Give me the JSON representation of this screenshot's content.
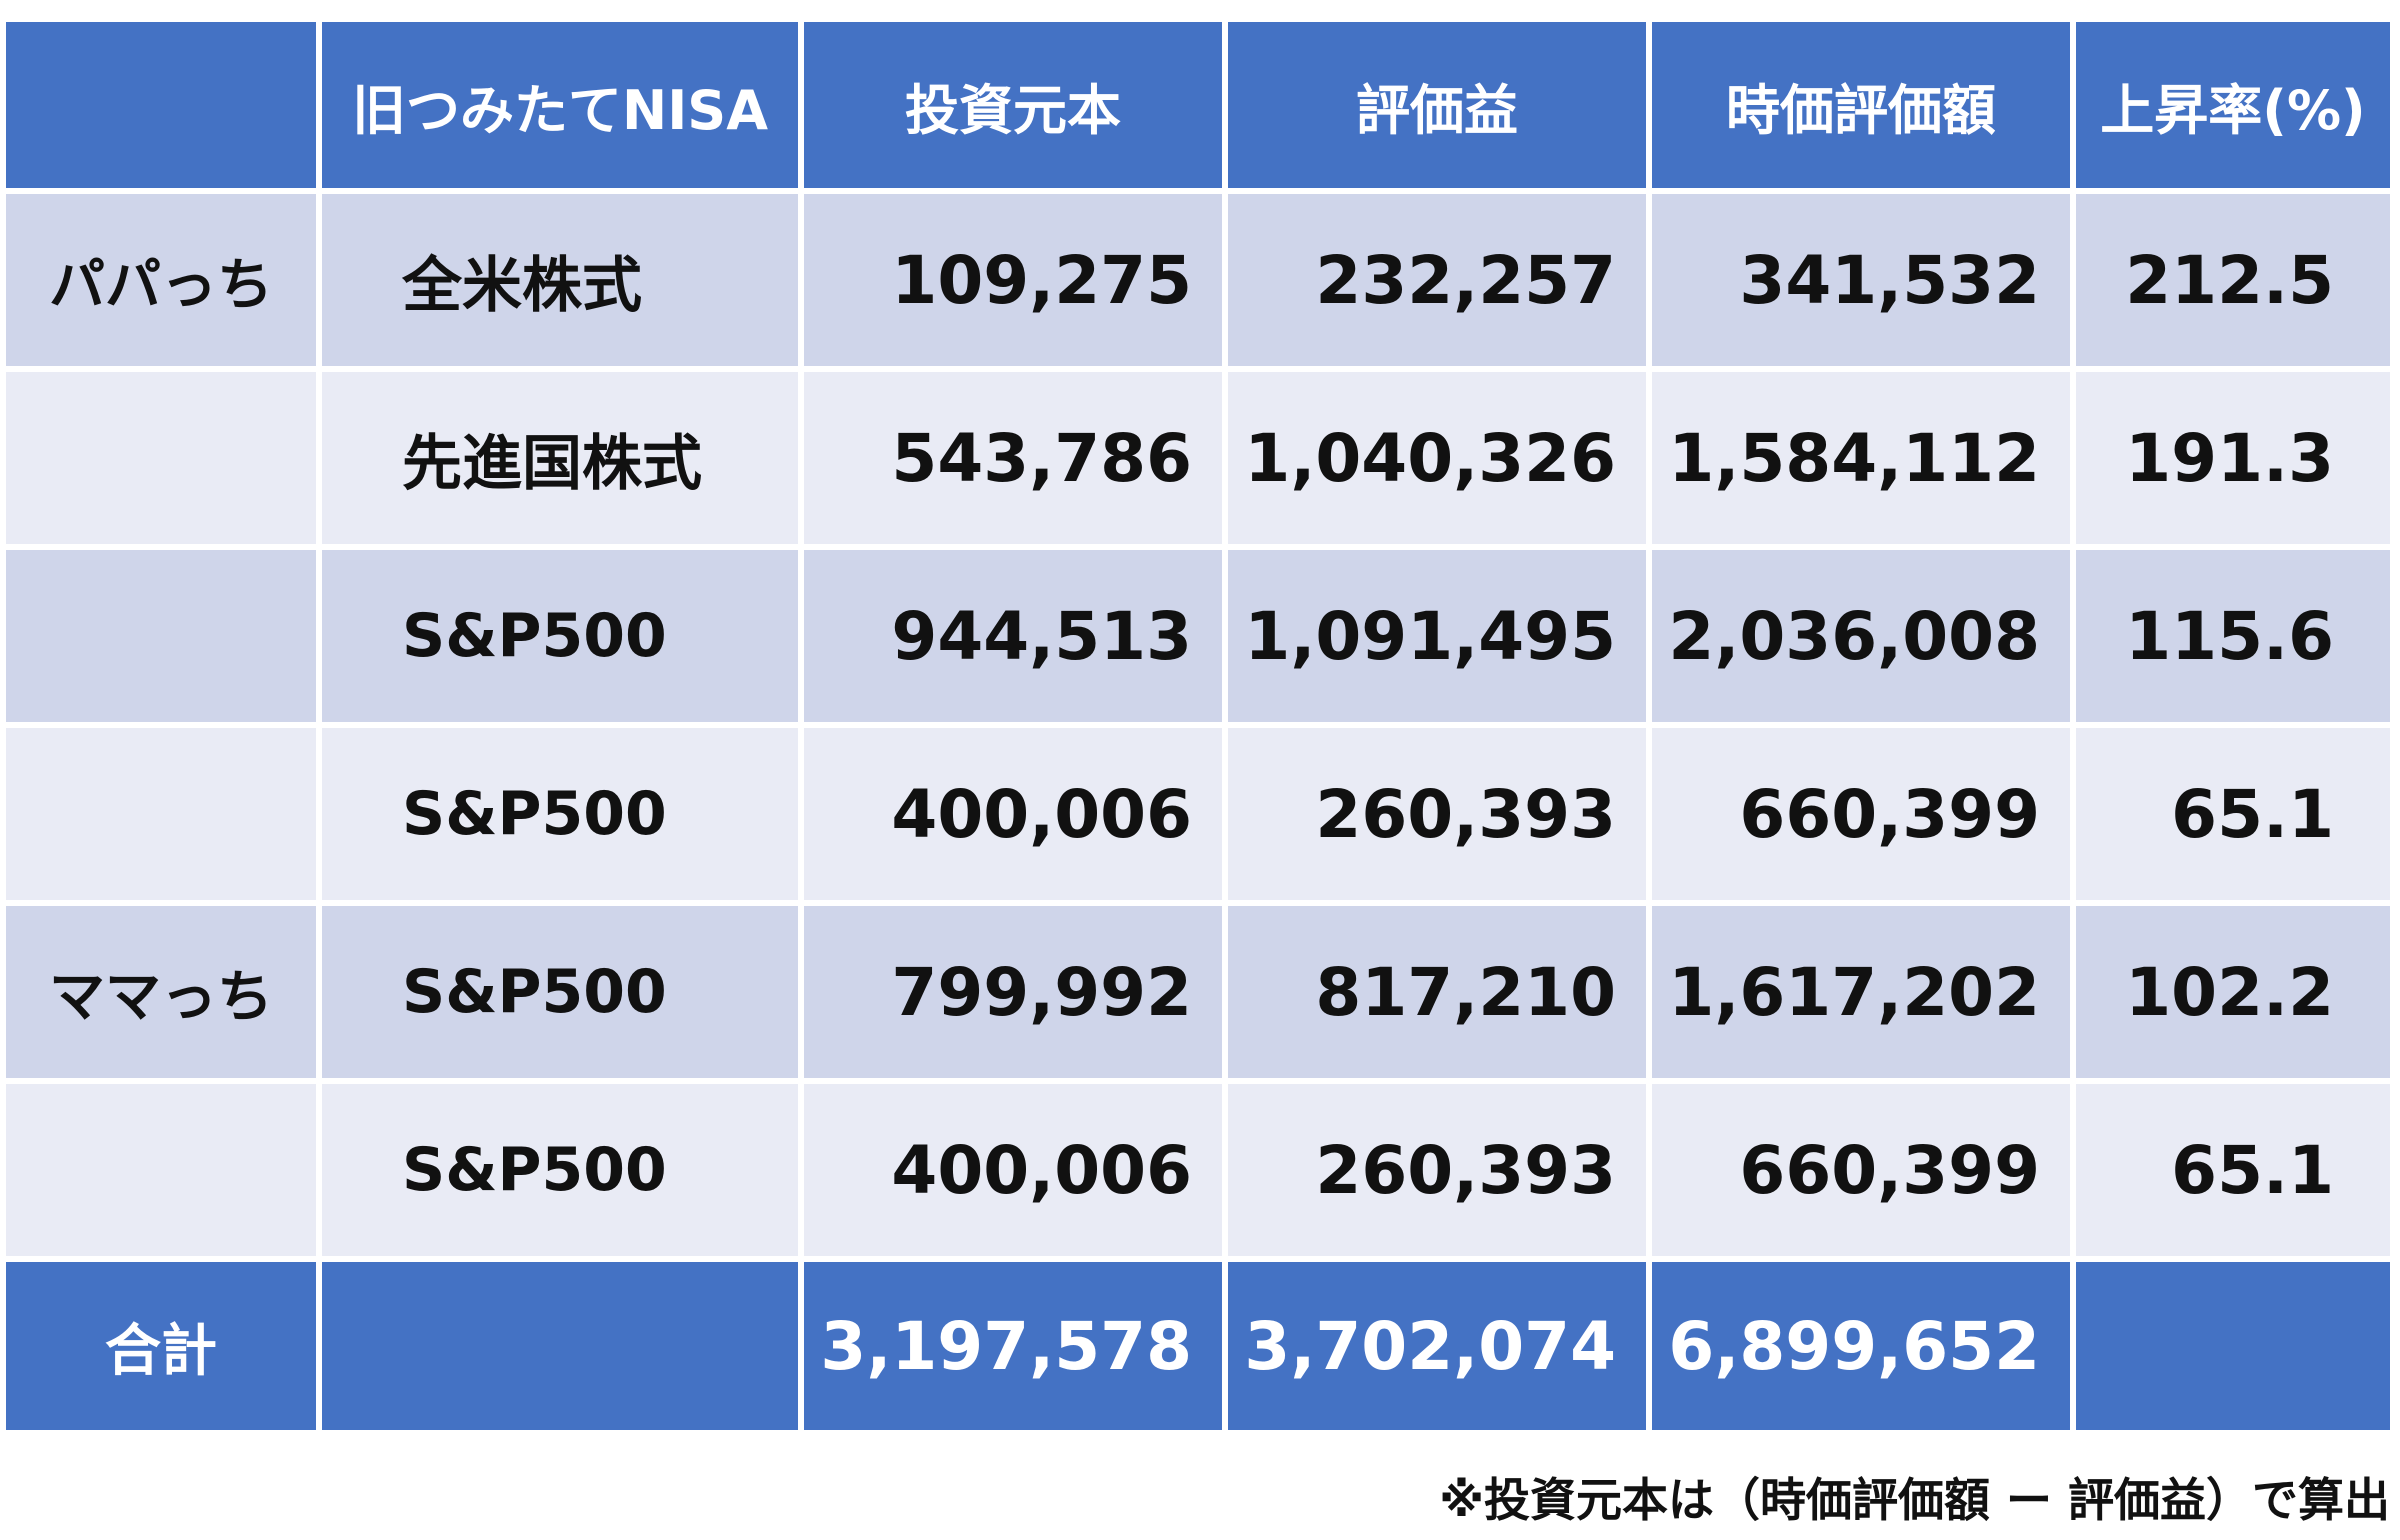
{
  "table": {
    "headers": [
      "",
      "旧つみたてNISA",
      "投資元本",
      "評価益",
      "時価評価額",
      "上昇率(%)"
    ],
    "rows": [
      {
        "owner": "パパっち",
        "fund": "全米株式",
        "principal": "109,275",
        "gain": "232,257",
        "market_value": "341,532",
        "rate": "212.5"
      },
      {
        "owner": "",
        "fund": "先進国株式",
        "principal": "543,786",
        "gain": "1,040,326",
        "market_value": "1,584,112",
        "rate": "191.3"
      },
      {
        "owner": "",
        "fund": "S&P500",
        "principal": "944,513",
        "gain": "1,091,495",
        "market_value": "2,036,008",
        "rate": "115.6"
      },
      {
        "owner": "",
        "fund": "S&P500",
        "principal": "400,006",
        "gain": "260,393",
        "market_value": "660,399",
        "rate": "65.1"
      },
      {
        "owner": "ママっち",
        "fund": "S&P500",
        "principal": "799,992",
        "gain": "817,210",
        "market_value": "1,617,202",
        "rate": "102.2"
      },
      {
        "owner": "",
        "fund": "S&P500",
        "principal": "400,006",
        "gain": "260,393",
        "market_value": "660,399",
        "rate": "65.1"
      }
    ],
    "total": {
      "label": "合計",
      "fund": "",
      "principal": "3,197,578",
      "gain": "3,702,074",
      "market_value": "6,899,652",
      "rate": ""
    }
  },
  "note": "※投資元本は（時価評価額 ー 評価益）で算出",
  "colors": {
    "header_bg": "#4472C4",
    "row_odd_bg": "#CFD5EA",
    "row_even_bg": "#E9EBF5",
    "header_text": "#FFFFFF"
  }
}
